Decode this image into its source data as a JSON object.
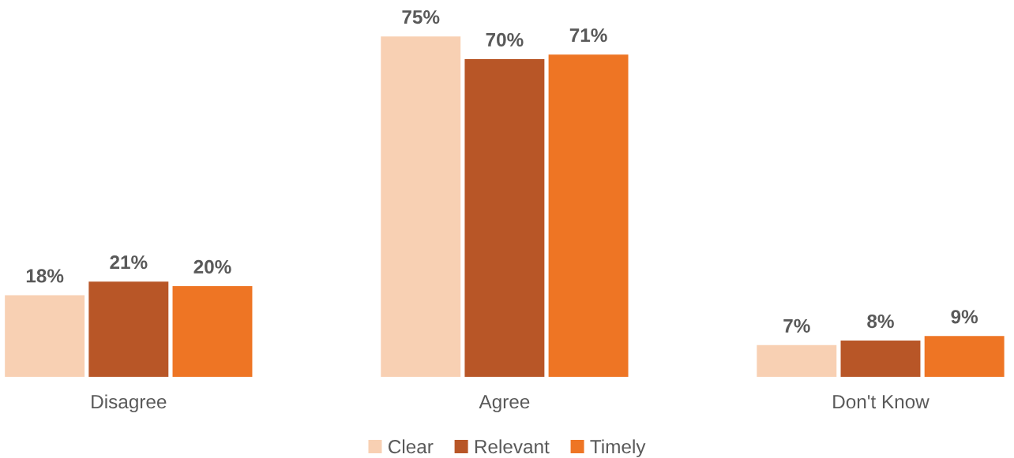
{
  "chart_data": {
    "type": "bar",
    "categories": [
      "Disagree",
      "Agree",
      "Don't Know"
    ],
    "series": [
      {
        "name": "Clear",
        "color": "#f8d0b3",
        "values": [
          18,
          75,
          7
        ],
        "value_labels": [
          "18%",
          "75%",
          "7%"
        ]
      },
      {
        "name": "Relevant",
        "color": "#b85627",
        "values": [
          21,
          70,
          8
        ],
        "value_labels": [
          "21%",
          "70%",
          "8%"
        ]
      },
      {
        "name": "Timely",
        "color": "#ee7524",
        "values": [
          20,
          71,
          9
        ],
        "value_labels": [
          "20%",
          "71%",
          "9%"
        ]
      }
    ],
    "legend": "bottom",
    "grid": false
  }
}
